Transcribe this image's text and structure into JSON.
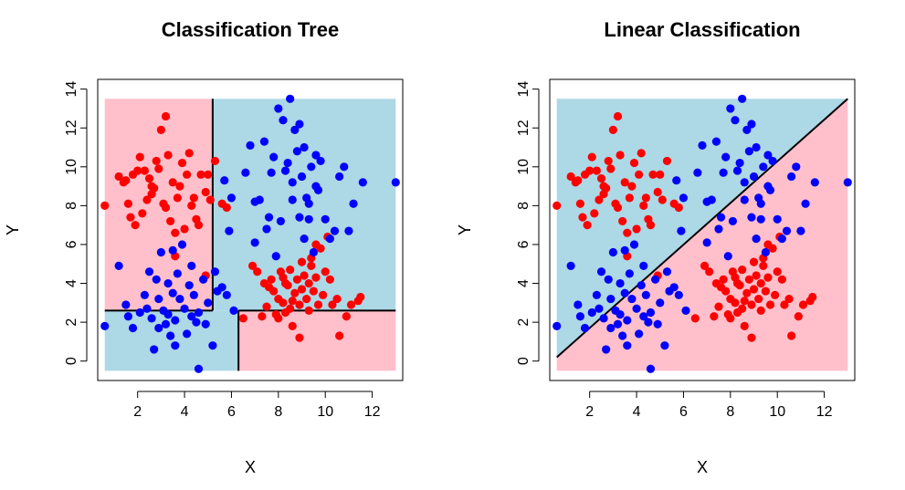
{
  "colors": {
    "region_red": "#ffc0cb",
    "region_blue": "#add8e6",
    "point_red": "#ff0000",
    "point_blue": "#0000ff",
    "boundary": "#000000"
  },
  "chart_data": [
    {
      "type": "scatter",
      "title": "Classification Tree",
      "xlabel": "X",
      "ylabel": "Y",
      "xlim": [
        0.3,
        13.3
      ],
      "ylim": [
        -1.0,
        14.5
      ],
      "x_ticks": [
        "2",
        "4",
        "6",
        "8",
        "10",
        "12"
      ],
      "y_ticks": [
        "0",
        "2",
        "4",
        "6",
        "8",
        "10",
        "12",
        "14"
      ],
      "grid": false,
      "background_region": {
        "x": [
          0.6,
          13.0
        ],
        "y": [
          -0.5,
          13.5
        ]
      },
      "regions": [
        {
          "class": "red",
          "x": [
            0.6,
            5.2
          ],
          "y": [
            2.6,
            13.5
          ]
        },
        {
          "class": "blue",
          "x": [
            5.2,
            13.0
          ],
          "y": [
            2.6,
            13.5
          ]
        },
        {
          "class": "blue",
          "x": [
            0.6,
            6.3
          ],
          "y": [
            -0.5,
            2.6
          ]
        },
        {
          "class": "red",
          "x": [
            6.3,
            13.0
          ],
          "y": [
            -0.5,
            2.6
          ]
        }
      ],
      "boundaries": [
        {
          "x": [
            5.2,
            5.2
          ],
          "y": [
            2.6,
            13.5
          ]
        },
        {
          "x": [
            0.6,
            5.2
          ],
          "y": [
            2.6,
            2.6
          ]
        },
        {
          "x": [
            6.3,
            13.0
          ],
          "y": [
            2.6,
            2.6
          ]
        },
        {
          "x": [
            6.3,
            6.3
          ],
          "y": [
            -0.5,
            2.6
          ]
        }
      ]
    },
    {
      "type": "scatter",
      "title": "Linear Classification",
      "xlabel": "X",
      "ylabel": "Y",
      "xlim": [
        0.3,
        13.3
      ],
      "ylim": [
        -1.0,
        14.5
      ],
      "x_ticks": [
        "2",
        "4",
        "6",
        "8",
        "10",
        "12"
      ],
      "y_ticks": [
        "0",
        "2",
        "4",
        "6",
        "8",
        "10",
        "12",
        "14"
      ],
      "grid": false,
      "background_region": {
        "x": [
          0.6,
          13.0
        ],
        "y": [
          -0.5,
          13.5
        ]
      },
      "regions": [
        {
          "class": "blue",
          "polygon": [
            [
              0.6,
              0.2
            ],
            [
              0.6,
              13.5
            ],
            [
              13.0,
              13.5
            ]
          ]
        },
        {
          "class": "red",
          "polygon": [
            [
              0.6,
              -0.5
            ],
            [
              0.6,
              0.2
            ],
            [
              13.0,
              13.5
            ],
            [
              13.0,
              -0.5
            ]
          ]
        }
      ],
      "boundaries": [
        {
          "x": [
            0.6,
            13.0
          ],
          "y": [
            0.2,
            13.5
          ]
        }
      ]
    }
  ],
  "points": {
    "red": [
      [
        0.6,
        8.0
      ],
      [
        1.2,
        9.5
      ],
      [
        1.5,
        9.3
      ],
      [
        1.8,
        9.6
      ],
      [
        2.1,
        10.5
      ],
      [
        2.3,
        9.8
      ],
      [
        2.5,
        9.4
      ],
      [
        2.7,
        8.9
      ],
      [
        2.9,
        9.9
      ],
      [
        3.0,
        11.9
      ],
      [
        3.2,
        12.6
      ],
      [
        3.3,
        10.6
      ],
      [
        3.5,
        9.2
      ],
      [
        3.7,
        8.4
      ],
      [
        3.9,
        10.2
      ],
      [
        4.1,
        9.6
      ],
      [
        4.3,
        8.0
      ],
      [
        4.5,
        7.3
      ],
      [
        4.7,
        9.6
      ],
      [
        4.9,
        8.7
      ],
      [
        5.1,
        8.3
      ],
      [
        5.3,
        10.3
      ],
      [
        5.6,
        8.1
      ],
      [
        5.8,
        7.9
      ],
      [
        1.6,
        8.1
      ],
      [
        1.9,
        7.0
      ],
      [
        2.2,
        7.6
      ],
      [
        2.6,
        8.6
      ],
      [
        3.1,
        8.1
      ],
      [
        3.4,
        7.2
      ],
      [
        3.6,
        6.6
      ],
      [
        4.0,
        6.8
      ],
      [
        4.6,
        7.0
      ],
      [
        4.9,
        4.4
      ],
      [
        2.0,
        9.8
      ],
      [
        2.8,
        10.3
      ],
      [
        3.8,
        9.0
      ],
      [
        4.4,
        8.4
      ],
      [
        1.4,
        9.2
      ],
      [
        2.4,
        8.3
      ],
      [
        3.2,
        7.9
      ],
      [
        4.2,
        10.7
      ],
      [
        1.7,
        7.4
      ],
      [
        2.6,
        9.0
      ],
      [
        3.6,
        5.4
      ],
      [
        5.0,
        9.6
      ],
      [
        6.5,
        2.2
      ],
      [
        6.9,
        4.9
      ],
      [
        7.1,
        4.6
      ],
      [
        7.3,
        2.3
      ],
      [
        7.5,
        2.8
      ],
      [
        7.7,
        4.2
      ],
      [
        7.8,
        3.6
      ],
      [
        7.9,
        2.4
      ],
      [
        8.0,
        3.2
      ],
      [
        8.1,
        4.6
      ],
      [
        8.2,
        3.0
      ],
      [
        8.3,
        2.5
      ],
      [
        8.4,
        3.9
      ],
      [
        8.5,
        4.7
      ],
      [
        8.6,
        1.8
      ],
      [
        8.7,
        3.5
      ],
      [
        8.8,
        4.2
      ],
      [
        8.9,
        2.9
      ],
      [
        9.0,
        3.7
      ],
      [
        9.1,
        4.4
      ],
      [
        9.2,
        3.2
      ],
      [
        9.3,
        2.6
      ],
      [
        9.4,
        4.9
      ],
      [
        9.5,
        3.6
      ],
      [
        9.6,
        4.3
      ],
      [
        9.7,
        2.9
      ],
      [
        9.8,
        5.8
      ],
      [
        9.9,
        3.4
      ],
      [
        10.0,
        4.6
      ],
      [
        10.1,
        6.4
      ],
      [
        10.3,
        2.9
      ],
      [
        10.5,
        3.2
      ],
      [
        10.6,
        1.3
      ],
      [
        10.9,
        2.3
      ],
      [
        11.1,
        2.9
      ],
      [
        11.4,
        3.1
      ],
      [
        11.5,
        3.3
      ],
      [
        8.3,
        4.0
      ],
      [
        8.6,
        3.1
      ],
      [
        9.0,
        5.1
      ],
      [
        7.6,
        3.8
      ],
      [
        8.0,
        2.2
      ],
      [
        8.9,
        1.2
      ],
      [
        9.3,
        4.0
      ],
      [
        9.6,
        6.0
      ],
      [
        8.5,
        2.7
      ],
      [
        7.4,
        4.0
      ],
      [
        10.2,
        4.2
      ],
      [
        9.4,
        5.3
      ],
      [
        8.2,
        4.3
      ]
    ],
    "blue": [
      [
        0.6,
        1.8
      ],
      [
        1.2,
        4.9
      ],
      [
        1.5,
        2.9
      ],
      [
        1.6,
        2.3
      ],
      [
        1.8,
        1.7
      ],
      [
        2.1,
        2.5
      ],
      [
        2.3,
        3.4
      ],
      [
        2.4,
        2.7
      ],
      [
        2.5,
        4.6
      ],
      [
        2.6,
        2.2
      ],
      [
        2.7,
        0.6
      ],
      [
        2.8,
        4.2
      ],
      [
        2.9,
        3.2
      ],
      [
        3.0,
        5.6
      ],
      [
        3.1,
        2.6
      ],
      [
        3.2,
        1.9
      ],
      [
        3.3,
        4.0
      ],
      [
        3.4,
        1.3
      ],
      [
        3.5,
        3.5
      ],
      [
        3.6,
        2.1
      ],
      [
        3.7,
        4.5
      ],
      [
        3.8,
        3.2
      ],
      [
        3.9,
        6.0
      ],
      [
        4.0,
        2.7
      ],
      [
        4.1,
        1.4
      ],
      [
        4.2,
        3.9
      ],
      [
        4.3,
        2.3
      ],
      [
        4.4,
        3.4
      ],
      [
        4.5,
        2.0
      ],
      [
        4.6,
        -0.4
      ],
      [
        4.8,
        4.2
      ],
      [
        4.9,
        1.9
      ],
      [
        5.0,
        3.0
      ],
      [
        5.2,
        0.8
      ],
      [
        5.3,
        4.6
      ],
      [
        5.4,
        3.6
      ],
      [
        5.6,
        3.8
      ],
      [
        5.8,
        3.4
      ],
      [
        5.9,
        6.7
      ],
      [
        6.0,
        8.4
      ],
      [
        6.1,
        2.6
      ],
      [
        5.7,
        9.3
      ],
      [
        4.6,
        2.5
      ],
      [
        3.3,
        2.4
      ],
      [
        2.9,
        1.7
      ],
      [
        3.6,
        0.8
      ],
      [
        4.3,
        4.9
      ],
      [
        3.5,
        5.7
      ],
      [
        6.6,
        9.7
      ],
      [
        6.8,
        11.1
      ],
      [
        7.0,
        8.2
      ],
      [
        7.2,
        8.3
      ],
      [
        7.4,
        11.3
      ],
      [
        7.6,
        7.4
      ],
      [
        7.8,
        10.5
      ],
      [
        8.0,
        13.0
      ],
      [
        8.2,
        12.4
      ],
      [
        8.4,
        10.2
      ],
      [
        8.5,
        13.5
      ],
      [
        8.6,
        9.2
      ],
      [
        8.7,
        11.9
      ],
      [
        8.8,
        10.8
      ],
      [
        8.9,
        12.2
      ],
      [
        9.0,
        9.5
      ],
      [
        9.1,
        11.0
      ],
      [
        9.2,
        8.4
      ],
      [
        9.3,
        7.3
      ],
      [
        9.4,
        10.0
      ],
      [
        9.5,
        5.6
      ],
      [
        9.6,
        9.0
      ],
      [
        9.7,
        8.8
      ],
      [
        9.8,
        10.3
      ],
      [
        10.0,
        7.3
      ],
      [
        10.2,
        6.3
      ],
      [
        10.4,
        6.7
      ],
      [
        10.6,
        9.5
      ],
      [
        10.8,
        10.0
      ],
      [
        11.0,
        6.7
      ],
      [
        11.2,
        8.1
      ],
      [
        11.6,
        9.2
      ],
      [
        13.0,
        9.2
      ],
      [
        7.0,
        6.1
      ],
      [
        7.5,
        6.8
      ],
      [
        7.9,
        5.4
      ],
      [
        8.3,
        9.8
      ],
      [
        8.6,
        8.3
      ],
      [
        8.9,
        7.4
      ],
      [
        9.1,
        6.3
      ],
      [
        9.3,
        8.1
      ],
      [
        7.7,
        9.7
      ],
      [
        8.1,
        7.2
      ],
      [
        9.6,
        10.6
      ]
    ]
  }
}
